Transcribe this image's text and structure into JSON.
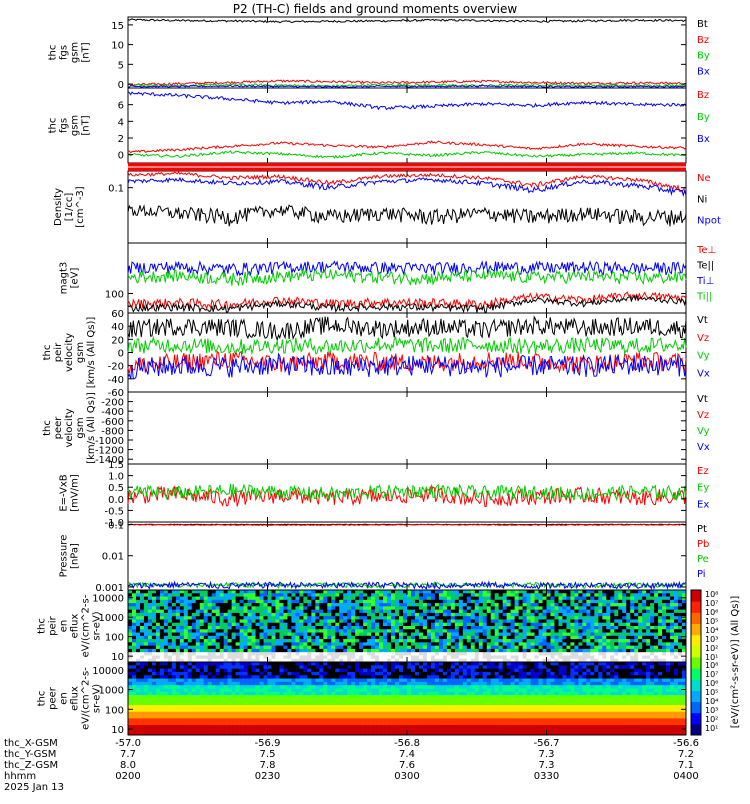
{
  "title": "P2 (TH-C) fields and ground moments overview",
  "footer": {
    "rows": [
      {
        "label": "thc_X-GSM",
        "values": [
          "-57.0",
          "-56.9",
          "-56.8",
          "-56.7",
          "-56.6"
        ]
      },
      {
        "label": "thc_Y-GSM",
        "values": [
          "7.7",
          "7.5",
          "7.4",
          "7.3",
          "7.2"
        ]
      },
      {
        "label": "thc_Z-GSM",
        "values": [
          "8.0",
          "7.8",
          "7.6",
          "7.3",
          "7.1"
        ]
      },
      {
        "label": "hhmm",
        "values": [
          "0200",
          "0230",
          "0300",
          "0330",
          "0400"
        ]
      }
    ],
    "date": "2025 Jan 13"
  },
  "colorbar": {
    "ticks_top": [
      "10⁸",
      "10⁷",
      "10⁶",
      "10⁵",
      "10⁴",
      "10³",
      "10²",
      "10¹"
    ],
    "ticks_bottom": [
      "10⁸",
      "10⁷",
      "10⁶",
      "10⁵",
      "10⁴",
      "10³",
      "10²",
      "10¹"
    ],
    "label": "[eV/(cm²-s-sr-eV)] (All Qs)]"
  },
  "chart_data": [
    {
      "type": "line",
      "panel": "fgs_gsm",
      "ylabel": [
        "thc",
        "fgs",
        "gsm",
        "[nT]"
      ],
      "ylim": [
        -1,
        17
      ],
      "yticks": [
        0,
        5,
        10,
        15
      ],
      "series": [
        {
          "name": "Bt",
          "color": "#000000",
          "values": [
            16.3,
            16.1,
            16.0,
            15.8,
            15.9,
            16.0,
            16.2,
            16.1,
            15.9,
            16.0,
            16.2,
            16.1
          ]
        },
        {
          "name": "Bz",
          "color": "#ff0000",
          "values": [
            -0.2,
            0.1,
            0.4,
            0.8,
            0.6,
            0.3,
            0.5,
            0.7,
            0.4,
            0.2,
            0.3,
            0.2
          ]
        },
        {
          "name": "By",
          "color": "#00cc00",
          "values": [
            -0.3,
            -0.4,
            -0.2,
            -0.3,
            -0.5,
            -0.2,
            -0.3,
            -0.4,
            -0.2,
            -0.3,
            -0.4,
            -0.3
          ]
        },
        {
          "name": "Bx",
          "color": "#0000ff",
          "values": [
            -0.6,
            -0.6,
            -0.5,
            -0.6,
            -0.7,
            -0.6,
            -0.6,
            -0.5,
            -0.6,
            -0.7,
            -0.6,
            -0.6
          ]
        }
      ]
    },
    {
      "type": "line",
      "panel": "fgs_gsm_deviation",
      "ylabel": [
        "thc",
        "fgs",
        "gsm",
        "[nT]"
      ],
      "ylim": [
        -1,
        8
      ],
      "yticks": [
        0,
        2,
        4,
        6
      ],
      "series": [
        {
          "name": "Bz",
          "color": "#ff0000",
          "values": [
            0.3,
            0.6,
            1.0,
            1.4,
            1.1,
            0.9,
            1.5,
            1.2,
            0.7,
            1.3,
            1.0,
            0.8
          ]
        },
        {
          "name": "By",
          "color": "#00cc00",
          "values": [
            0.0,
            -0.2,
            0.3,
            0.1,
            -0.3,
            0.2,
            -0.1,
            0.3,
            -0.2,
            0.0,
            0.2,
            -0.1
          ]
        },
        {
          "name": "Bx",
          "color": "#0000ff",
          "values": [
            7.4,
            7.1,
            6.7,
            6.2,
            6.4,
            5.6,
            5.8,
            6.1,
            5.9,
            6.3,
            6.0,
            6.0
          ]
        }
      ]
    },
    {
      "type": "line",
      "panel": "density",
      "ylabel": [
        "Density",
        "[1/cc]",
        "[cm^-3]"
      ],
      "yscale": "log",
      "ylim": [
        0.01,
        0.2
      ],
      "yticks": [
        0.1
      ],
      "series": [
        {
          "name": "Ne",
          "color": "#ff0000",
          "values": [
            0.17,
            0.18,
            0.15,
            0.16,
            0.12,
            0.16,
            0.17,
            0.15,
            0.11,
            0.16,
            0.14,
            0.09
          ]
        },
        {
          "name": "Ni",
          "color": "#000000",
          "values": [
            0.04,
            0.035,
            0.03,
            0.04,
            0.03,
            0.035,
            0.03,
            0.035,
            0.03,
            0.035,
            0.03,
            0.03
          ]
        },
        {
          "name": "Npot",
          "color": "#0000ff",
          "values": [
            0.13,
            0.14,
            0.12,
            0.13,
            0.1,
            0.13,
            0.14,
            0.12,
            0.09,
            0.13,
            0.11,
            0.08
          ]
        }
      ]
    },
    {
      "type": "line",
      "panel": "temperature",
      "ylabel": [
        "magt3",
        "[eV]"
      ],
      "yscale": "log",
      "ylim": [
        50,
        600
      ],
      "yticks": [
        100
      ],
      "series": [
        {
          "name": "Te⊥",
          "color": "#ff0000",
          "values": [
            70,
            72,
            68,
            80,
            70,
            74,
            72,
            68,
            90,
            80,
            95,
            85
          ]
        },
        {
          "name": "Te||",
          "color": "#000000",
          "values": [
            60,
            62,
            58,
            70,
            60,
            63,
            61,
            58,
            80,
            70,
            85,
            75
          ]
        },
        {
          "name": "Ti⊥",
          "color": "#0000ff",
          "values": [
            250,
            260,
            240,
            255,
            265,
            250,
            245,
            260,
            250,
            255,
            245,
            250
          ]
        },
        {
          "name": "Ti||",
          "color": "#00cc00",
          "values": [
            180,
            190,
            170,
            185,
            195,
            180,
            175,
            190,
            180,
            185,
            175,
            180
          ]
        }
      ]
    },
    {
      "type": "line",
      "panel": "peir_velocity",
      "ylabel": [
        "thc",
        "peir",
        "velocity",
        "gsm",
        "[km/s (All Qs)]"
      ],
      "ylim": [
        -60,
        60
      ],
      "yticks": [
        -60,
        -40,
        -20,
        0,
        20,
        40,
        60
      ],
      "series": [
        {
          "name": "Vt",
          "color": "#000000",
          "values": [
            35,
            40,
            38,
            32,
            42,
            36,
            39,
            34,
            41,
            37,
            40,
            36
          ]
        },
        {
          "name": "Vz",
          "color": "#ff0000",
          "values": [
            -20,
            -15,
            -10,
            -18,
            -12,
            -14,
            -16,
            -11,
            -13,
            -17,
            -12,
            -15
          ]
        },
        {
          "name": "Vy",
          "color": "#00cc00",
          "values": [
            10,
            12,
            8,
            11,
            9,
            13,
            10,
            12,
            9,
            11,
            10,
            12
          ]
        },
        {
          "name": "Vx",
          "color": "#0000ff",
          "values": [
            -25,
            -20,
            -22,
            -18,
            -24,
            -21,
            -19,
            -23,
            -20,
            -22,
            -18,
            -21
          ]
        }
      ]
    },
    {
      "type": "line",
      "panel": "peer_velocity",
      "ylabel": [
        "thc",
        "peer",
        "velocity",
        "gsm",
        "[km/s (All Qs)]"
      ],
      "ylim": [
        -1500,
        0
      ],
      "yticks": [
        -1400,
        -1200,
        -1000,
        -800,
        -600,
        -400,
        -200
      ],
      "series": [
        {
          "name": "Vt",
          "color": "#000000",
          "values": []
        },
        {
          "name": "Vz",
          "color": "#ff0000",
          "values": []
        },
        {
          "name": "Vy",
          "color": "#00cc00",
          "values": []
        },
        {
          "name": "Vx",
          "color": "#0000ff",
          "values": []
        }
      ]
    },
    {
      "type": "line",
      "panel": "efield",
      "ylabel": [
        "E=-VxB",
        "[mV/m]"
      ],
      "ylim": [
        -1.0,
        1.5
      ],
      "yticks": [
        -1.0,
        -0.5,
        0.0,
        0.5,
        1.0,
        1.5
      ],
      "series": [
        {
          "name": "Ez",
          "color": "#ff0000",
          "values": [
            0.1,
            0.2,
            0.0,
            0.15,
            0.05,
            0.1,
            0.2,
            0.0,
            0.1,
            0.15,
            0.05,
            0.1
          ]
        },
        {
          "name": "Ey",
          "color": "#00cc00",
          "values": [
            0.3,
            0.25,
            0.35,
            0.3,
            0.2,
            0.3,
            0.35,
            0.25,
            0.3,
            0.2,
            0.3,
            0.25
          ]
        },
        {
          "name": "Ex",
          "color": "#0000ff",
          "values": []
        }
      ]
    },
    {
      "type": "line",
      "panel": "pressure",
      "ylabel": [
        "Pressure",
        "[nPa]"
      ],
      "yscale": "log",
      "ylim": [
        0.0008,
        0.12
      ],
      "yticks": [
        0.001,
        0.01,
        0.1
      ],
      "series": [
        {
          "name": "Pt",
          "color": "#000000",
          "values": [
            0.1,
            0.1,
            0.1,
            0.1,
            0.1,
            0.1,
            0.1,
            0.1,
            0.1,
            0.1,
            0.1,
            0.1
          ]
        },
        {
          "name": "Pb",
          "color": "#ff0000",
          "values": [
            0.098,
            0.097,
            0.096,
            0.095,
            0.096,
            0.097,
            0.098,
            0.097,
            0.096,
            0.097,
            0.098,
            0.097
          ]
        },
        {
          "name": "Pe",
          "color": "#00cc00",
          "values": [
            0.0012,
            0.0011,
            0.0012,
            0.0011,
            0.0012,
            0.0011,
            0.0012,
            0.0011,
            0.0012,
            0.0011,
            0.0012,
            0.0011
          ]
        },
        {
          "name": "Pi",
          "color": "#0000ff",
          "values": [
            0.0011,
            0.0012,
            0.0011,
            0.0012,
            0.0011,
            0.0012,
            0.0011,
            0.0012,
            0.0011,
            0.0012,
            0.0011,
            0.0012
          ]
        }
      ]
    },
    {
      "type": "heatmap",
      "panel": "peir_en_eflux",
      "ylabel": [
        "thc",
        "peir",
        "en",
        "eflux",
        "eV/(cm^2-s-",
        "sr-eV)"
      ],
      "yscale": "log",
      "ylim": [
        5,
        25000
      ],
      "yticks": [
        10,
        100,
        1000,
        10000
      ]
    },
    {
      "type": "heatmap",
      "panel": "peer_en_eflux",
      "ylabel": [
        "thc",
        "peer",
        "en",
        "eflux",
        "eV/(cm^2-s-",
        "sr-eV)"
      ],
      "yscale": "log",
      "ylim": [
        5,
        25000
      ],
      "yticks": [
        10,
        100,
        1000,
        10000
      ]
    }
  ]
}
